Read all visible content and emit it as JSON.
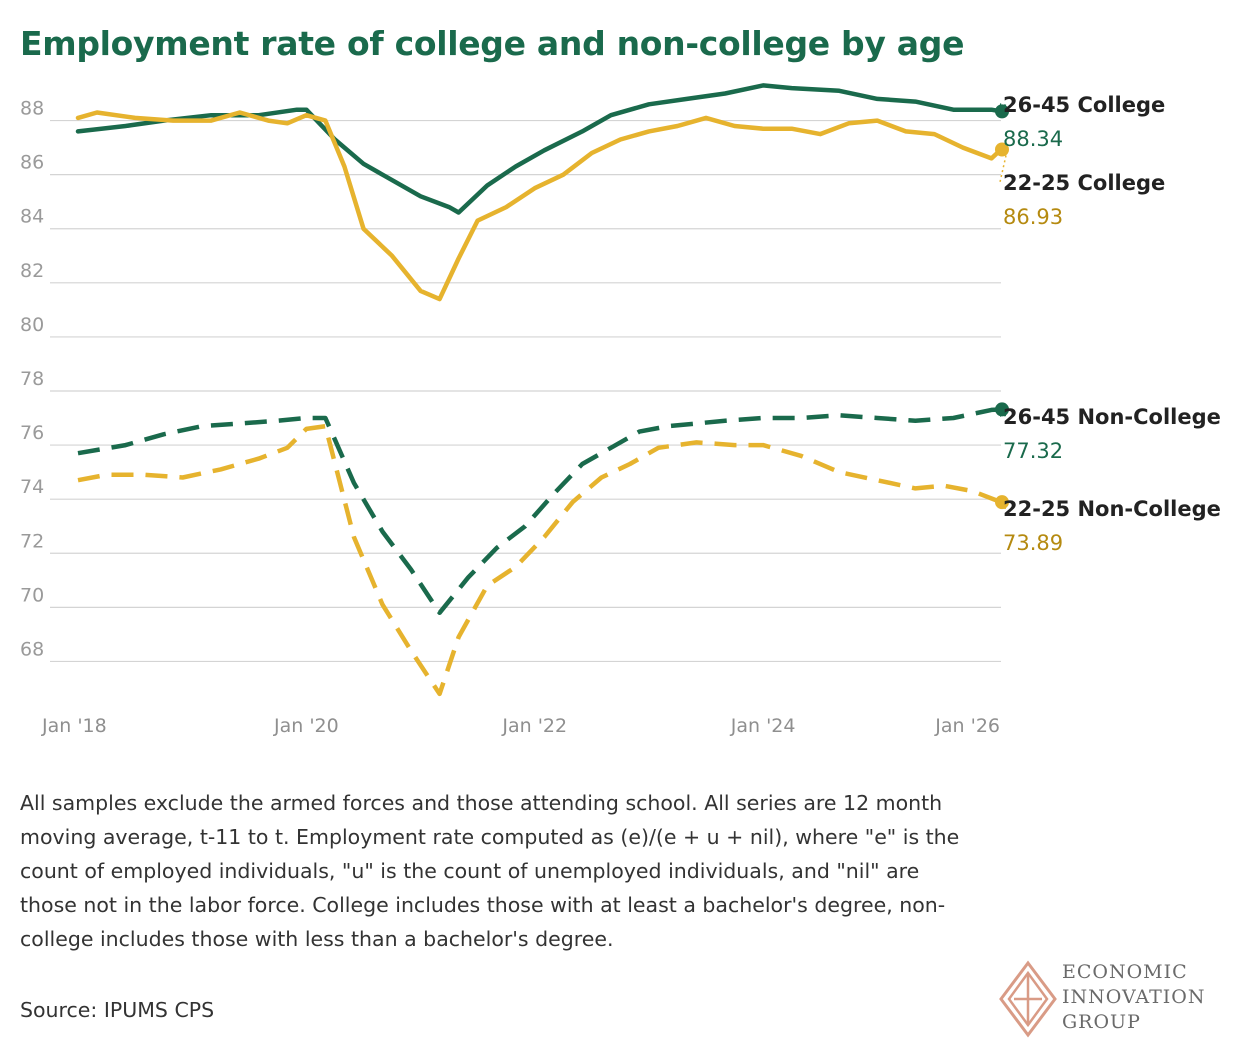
{
  "title": "Employment rate of college and non-college by age",
  "note": "All samples exclude the armed forces and those attending school. All series are 12 month moving average, t-11 to t. Employment rate computed as (e)/(e + u + nil), where \"e\" is the count of employed individuals, \"u\" is the count of unemployed individuals, and \"nil\" are those not in the labor force. College includes those with at least a bachelor's degree, non-college includes those with less than a bachelor's degree.",
  "source": "Source: IPUMS CPS",
  "logo": {
    "line1": "ECONOMIC",
    "line2": "INNOVATION",
    "line3": "GROUP"
  },
  "colors": {
    "green": "#1a6a4c",
    "gold": "#e6b32e",
    "gold_text": "#b58a10",
    "grid": "#d4d4d4"
  },
  "chart_data": {
    "type": "line",
    "title": "Employment rate of college and non-college by age",
    "xlabel": "",
    "ylabel": "",
    "ylim": [
      66.5,
      89.5
    ],
    "xlim": [
      "2018-01",
      "2026-02"
    ],
    "y_ticks": [
      68,
      70,
      72,
      74,
      76,
      78,
      80,
      82,
      84,
      86,
      88
    ],
    "x_ticks": [
      {
        "date": "2018-01",
        "label": "Jan '18"
      },
      {
        "date": "2020-01",
        "label": "Jan '20"
      },
      {
        "date": "2022-01",
        "label": "Jan '22"
      },
      {
        "date": "2024-01",
        "label": "Jan '24"
      },
      {
        "date": "2026-01",
        "label": "Jan '26"
      }
    ],
    "grid": true,
    "legend": "inline labels at right end of each line",
    "series": [
      {
        "name": "26-45 College",
        "value_label": "88.34",
        "color": "#1a6a4c",
        "value_color": "#1a6a4c",
        "style": "solid",
        "points": [
          [
            "2018-01",
            87.6
          ],
          [
            "2018-06",
            87.8
          ],
          [
            "2018-10",
            88.0
          ],
          [
            "2019-03",
            88.2
          ],
          [
            "2019-08",
            88.2
          ],
          [
            "2019-12",
            88.4
          ],
          [
            "2020-01",
            88.4
          ],
          [
            "2020-04",
            87.3
          ],
          [
            "2020-07",
            86.4
          ],
          [
            "2020-10",
            85.8
          ],
          [
            "2021-01",
            85.2
          ],
          [
            "2021-04",
            84.8
          ],
          [
            "2021-05",
            84.6
          ],
          [
            "2021-08",
            85.6
          ],
          [
            "2021-11",
            86.3
          ],
          [
            "2022-02",
            86.9
          ],
          [
            "2022-06",
            87.6
          ],
          [
            "2022-09",
            88.2
          ],
          [
            "2023-01",
            88.6
          ],
          [
            "2023-05",
            88.8
          ],
          [
            "2023-09",
            89.0
          ],
          [
            "2024-01",
            89.3
          ],
          [
            "2024-04",
            89.2
          ],
          [
            "2024-09",
            89.1
          ],
          [
            "2025-01",
            88.8
          ],
          [
            "2025-05",
            88.7
          ],
          [
            "2025-09",
            88.4
          ],
          [
            "2026-01",
            88.4
          ],
          [
            "2026-02",
            88.34
          ]
        ]
      },
      {
        "name": "22-25 College",
        "value_label": "86.93",
        "color": "#e6b32e",
        "value_color": "#b58a10",
        "style": "solid",
        "points": [
          [
            "2018-01",
            88.1
          ],
          [
            "2018-03",
            88.3
          ],
          [
            "2018-07",
            88.1
          ],
          [
            "2018-11",
            88.0
          ],
          [
            "2019-03",
            88.0
          ],
          [
            "2019-06",
            88.3
          ],
          [
            "2019-09",
            88.0
          ],
          [
            "2019-11",
            87.9
          ],
          [
            "2020-01",
            88.2
          ],
          [
            "2020-03",
            88.0
          ],
          [
            "2020-05",
            86.3
          ],
          [
            "2020-07",
            84.0
          ],
          [
            "2020-10",
            83.0
          ],
          [
            "2021-01",
            81.7
          ],
          [
            "2021-03",
            81.4
          ],
          [
            "2021-05",
            82.9
          ],
          [
            "2021-07",
            84.3
          ],
          [
            "2021-10",
            84.8
          ],
          [
            "2022-01",
            85.5
          ],
          [
            "2022-04",
            86.0
          ],
          [
            "2022-07",
            86.8
          ],
          [
            "2022-10",
            87.3
          ],
          [
            "2023-01",
            87.6
          ],
          [
            "2023-04",
            87.8
          ],
          [
            "2023-07",
            88.1
          ],
          [
            "2023-10",
            87.8
          ],
          [
            "2024-01",
            87.7
          ],
          [
            "2024-04",
            87.7
          ],
          [
            "2024-07",
            87.5
          ],
          [
            "2024-10",
            87.9
          ],
          [
            "2025-01",
            88.0
          ],
          [
            "2025-04",
            87.6
          ],
          [
            "2025-07",
            87.5
          ],
          [
            "2025-10",
            87.0
          ],
          [
            "2026-01",
            86.6
          ],
          [
            "2026-02",
            86.93
          ]
        ]
      },
      {
        "name": "26-45 Non-College",
        "value_label": "77.32",
        "color": "#1a6a4c",
        "value_color": "#1a6a4c",
        "style": "dashed",
        "points": [
          [
            "2018-01",
            75.7
          ],
          [
            "2018-06",
            76.0
          ],
          [
            "2018-10",
            76.4
          ],
          [
            "2019-02",
            76.7
          ],
          [
            "2019-06",
            76.8
          ],
          [
            "2019-10",
            76.9
          ],
          [
            "2020-01",
            77.0
          ],
          [
            "2020-03",
            77.0
          ],
          [
            "2020-06",
            74.6
          ],
          [
            "2020-09",
            72.8
          ],
          [
            "2020-12",
            71.4
          ],
          [
            "2021-03",
            69.8
          ],
          [
            "2021-06",
            71.1
          ],
          [
            "2021-09",
            72.2
          ],
          [
            "2021-12",
            73.0
          ],
          [
            "2022-03",
            74.2
          ],
          [
            "2022-06",
            75.3
          ],
          [
            "2022-09",
            75.9
          ],
          [
            "2022-12",
            76.5
          ],
          [
            "2023-03",
            76.7
          ],
          [
            "2023-06",
            76.8
          ],
          [
            "2023-09",
            76.9
          ],
          [
            "2024-01",
            77.0
          ],
          [
            "2024-05",
            77.0
          ],
          [
            "2024-09",
            77.1
          ],
          [
            "2025-01",
            77.0
          ],
          [
            "2025-05",
            76.9
          ],
          [
            "2025-09",
            77.0
          ],
          [
            "2026-01",
            77.3
          ],
          [
            "2026-02",
            77.32
          ]
        ]
      },
      {
        "name": "22-25 Non-College",
        "value_label": "73.89",
        "color": "#e6b32e",
        "value_color": "#b58a10",
        "style": "dashed",
        "points": [
          [
            "2018-01",
            74.7
          ],
          [
            "2018-04",
            74.9
          ],
          [
            "2018-08",
            74.9
          ],
          [
            "2018-12",
            74.8
          ],
          [
            "2019-04",
            75.1
          ],
          [
            "2019-08",
            75.5
          ],
          [
            "2019-11",
            75.9
          ],
          [
            "2020-01",
            76.6
          ],
          [
            "2020-03",
            76.7
          ],
          [
            "2020-06",
            72.6
          ],
          [
            "2020-09",
            70.1
          ],
          [
            "2020-12",
            68.4
          ],
          [
            "2021-03",
            66.8
          ],
          [
            "2021-05",
            68.9
          ],
          [
            "2021-08",
            70.8
          ],
          [
            "2021-11",
            71.5
          ],
          [
            "2022-02",
            72.6
          ],
          [
            "2022-05",
            73.9
          ],
          [
            "2022-08",
            74.8
          ],
          [
            "2022-11",
            75.3
          ],
          [
            "2023-02",
            75.9
          ],
          [
            "2023-06",
            76.1
          ],
          [
            "2023-10",
            76.0
          ],
          [
            "2024-01",
            76.0
          ],
          [
            "2024-05",
            75.6
          ],
          [
            "2024-09",
            75.0
          ],
          [
            "2025-01",
            74.7
          ],
          [
            "2025-05",
            74.4
          ],
          [
            "2025-08",
            74.5
          ],
          [
            "2025-11",
            74.3
          ],
          [
            "2026-02",
            73.89
          ]
        ]
      }
    ]
  }
}
